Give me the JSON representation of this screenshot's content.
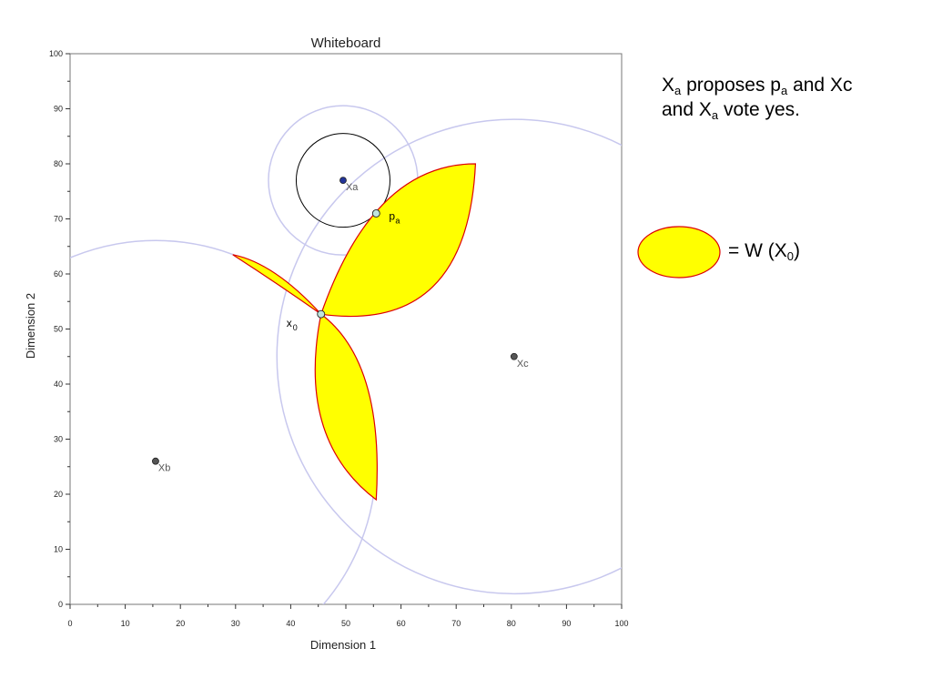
{
  "chart_data": {
    "type": "scatter",
    "title": "Whiteboard",
    "xlabel": "Dimension 1",
    "ylabel": "Dimension 2",
    "xlim": [
      0,
      100
    ],
    "ylim": [
      0,
      100
    ],
    "xticks": [
      0,
      10,
      20,
      30,
      40,
      50,
      60,
      70,
      80,
      90,
      100
    ],
    "yticks": [
      0,
      10,
      20,
      30,
      40,
      50,
      60,
      70,
      80,
      90,
      100
    ],
    "grid": false,
    "points": [
      {
        "label": "Xa",
        "x": 49.5,
        "y": 77
      },
      {
        "label": "Xb",
        "x": 15.5,
        "y": 26
      },
      {
        "label": "Xc",
        "x": 80.5,
        "y": 45
      }
    ],
    "status_quo": {
      "label": "x",
      "sub": "0",
      "x": 45.5,
      "y": 52.7
    },
    "proposal": {
      "label": "p",
      "sub": "a",
      "x": 55.5,
      "y": 71
    },
    "indifference_radii": {
      "Xa": 8.5,
      "Xb": 40,
      "Xc": 43
    },
    "region_color": "#ffff00",
    "region_border": "#dd0000",
    "circle_color": "#c8c8ee"
  },
  "caption": {
    "line1_a": "X",
    "line1_a_sub": "a",
    "line1_b": " proposes p",
    "line1_b_sub": "a",
    "line1_c": " and Xc",
    "line2_a": "and X",
    "line2_a_sub": "a",
    "line2_b": " vote yes."
  },
  "legend": {
    "text_a": "= W (X",
    "text_sub": "0",
    "text_b": ")"
  }
}
